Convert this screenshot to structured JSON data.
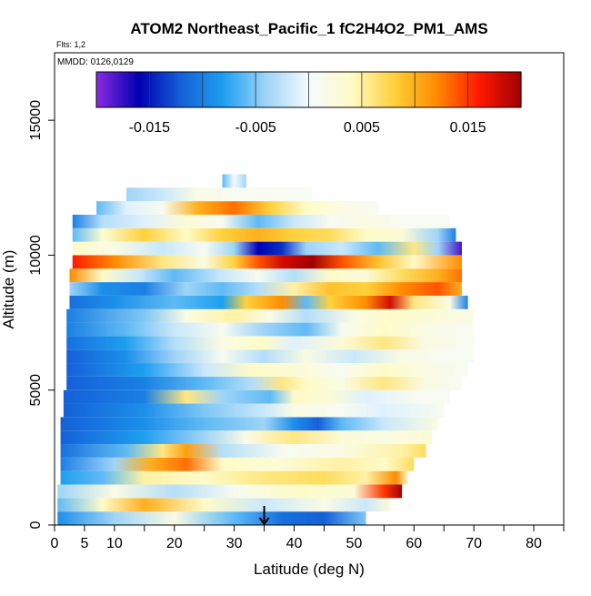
{
  "chart_data": {
    "type": "heatmap",
    "title": "ATOM2 Northeast_Pacific_1 fC2H4O2_PM1_AMS",
    "flights_label": "Flts: 1,2",
    "dates_label": "MMDD: 0126,0129",
    "xlabel": "Latitude (deg N)",
    "ylabel": "Altitude (m)",
    "xlim": [
      0,
      85
    ],
    "ylim": [
      0,
      17500
    ],
    "x_ticks": [
      0,
      5,
      10,
      20,
      30,
      40,
      50,
      60,
      70,
      80
    ],
    "x_minor_ticks": [
      15,
      25,
      35,
      45,
      55,
      65,
      75,
      85
    ],
    "y_ticks": [
      0,
      5000,
      10000,
      15000
    ],
    "colorbar": {
      "range": [
        -0.02,
        0.02
      ],
      "tick_values": [
        -0.015,
        -0.005,
        0.005,
        0.015
      ],
      "tick_labels": [
        "-0.015",
        "-0.005",
        "0.005",
        "0.015"
      ],
      "colors": [
        "#8a2be2",
        "#0000b0",
        "#1560d8",
        "#1e9ff0",
        "#9fd4f7",
        "#f4fbff",
        "#fffbc8",
        "#ffd23c",
        "#ff8c00",
        "#ff1a00",
        "#a00000"
      ]
    },
    "marker": {
      "type": "arrow",
      "x": 35,
      "label": ""
    },
    "layers": [
      {
        "y0": 0,
        "y1": 500,
        "x0": 0.5,
        "x1": 52,
        "stops": [
          [
            0,
            -0.009
          ],
          [
            10,
            -0.004
          ],
          [
            20,
            0.002
          ],
          [
            30,
            -0.006
          ],
          [
            38,
            -0.011
          ],
          [
            45,
            -0.012
          ],
          [
            52,
            -0.005
          ]
        ]
      },
      {
        "y0": 500,
        "y1": 1000,
        "x0": 0.5,
        "x1": 56,
        "stops": [
          [
            0,
            -0.006
          ],
          [
            8,
            0.004
          ],
          [
            15,
            0.01
          ],
          [
            25,
            0.004
          ],
          [
            35,
            -0.002
          ],
          [
            45,
            0.002
          ],
          [
            52,
            -0.002
          ],
          [
            56,
            0.003
          ]
        ]
      },
      {
        "y0": 1000,
        "y1": 1500,
        "x0": 0.5,
        "x1": 58,
        "stops": [
          [
            0,
            -0.004
          ],
          [
            10,
            0.002
          ],
          [
            20,
            -0.003
          ],
          [
            30,
            0.001
          ],
          [
            40,
            0.004
          ],
          [
            50,
            0.003
          ],
          [
            55,
            0.015
          ],
          [
            58,
            0.02
          ]
        ]
      },
      {
        "y0": 1500,
        "y1": 2000,
        "x0": 1,
        "x1": 59,
        "stops": [
          [
            1,
            -0.008
          ],
          [
            8,
            -0.006
          ],
          [
            15,
            0.005
          ],
          [
            25,
            0.004
          ],
          [
            35,
            0.006
          ],
          [
            45,
            0.007
          ],
          [
            52,
            0.005
          ],
          [
            57,
            0.012
          ],
          [
            59,
            0.004
          ]
        ]
      },
      {
        "y0": 2000,
        "y1": 2500,
        "x0": 1,
        "x1": 60,
        "stops": [
          [
            1,
            -0.01
          ],
          [
            10,
            -0.004
          ],
          [
            16,
            0.01
          ],
          [
            22,
            0.013
          ],
          [
            28,
            0.004
          ],
          [
            38,
            0.003
          ],
          [
            48,
            0.005
          ],
          [
            55,
            0.004
          ],
          [
            60,
            0.007
          ]
        ]
      },
      {
        "y0": 2500,
        "y1": 3000,
        "x0": 1,
        "x1": 62,
        "stops": [
          [
            1,
            -0.011
          ],
          [
            12,
            -0.006
          ],
          [
            18,
            0.006
          ],
          [
            22,
            0.011
          ],
          [
            28,
            -0.003
          ],
          [
            38,
            0.001
          ],
          [
            48,
            0.002
          ],
          [
            58,
            0.005
          ],
          [
            62,
            0.007
          ]
        ]
      },
      {
        "y0": 3000,
        "y1": 3500,
        "x0": 1,
        "x1": 63,
        "stops": [
          [
            1,
            -0.012
          ],
          [
            15,
            -0.008
          ],
          [
            25,
            -0.004
          ],
          [
            32,
            0.002
          ],
          [
            40,
            0.006
          ],
          [
            48,
            0.003
          ],
          [
            55,
            0.002
          ],
          [
            63,
            0.003
          ]
        ]
      },
      {
        "y0": 3500,
        "y1": 4000,
        "x0": 1,
        "x1": 64,
        "stops": [
          [
            1,
            -0.012
          ],
          [
            15,
            -0.009
          ],
          [
            25,
            -0.006
          ],
          [
            35,
            -0.004
          ],
          [
            40,
            -0.009
          ],
          [
            44,
            -0.012
          ],
          [
            48,
            -0.006
          ],
          [
            55,
            -0.002
          ],
          [
            64,
            0.002
          ]
        ]
      },
      {
        "y0": 4000,
        "y1": 4500,
        "x0": 1.5,
        "x1": 65,
        "stops": [
          [
            1.5,
            -0.012
          ],
          [
            15,
            -0.009
          ],
          [
            25,
            -0.005
          ],
          [
            35,
            -0.002
          ],
          [
            40,
            0.002
          ],
          [
            48,
            0.001
          ],
          [
            55,
            -0.001
          ],
          [
            65,
            0.001
          ]
        ]
      },
      {
        "y0": 4500,
        "y1": 5000,
        "x0": 1.5,
        "x1": 66,
        "stops": [
          [
            1.5,
            -0.012
          ],
          [
            15,
            -0.01
          ],
          [
            22,
            0.006
          ],
          [
            28,
            -0.004
          ],
          [
            36,
            -0.006
          ],
          [
            40,
            0.004
          ],
          [
            46,
            0.003
          ],
          [
            52,
            -0.001
          ],
          [
            60,
            0.001
          ],
          [
            66,
            0.001
          ]
        ]
      },
      {
        "y0": 5000,
        "y1": 5500,
        "x0": 2,
        "x1": 68,
        "stops": [
          [
            2,
            -0.012
          ],
          [
            15,
            -0.01
          ],
          [
            25,
            -0.006
          ],
          [
            33,
            -0.003
          ],
          [
            38,
            0.006
          ],
          [
            42,
            0.004
          ],
          [
            48,
            0.002
          ],
          [
            55,
            0.006
          ],
          [
            62,
            0.002
          ],
          [
            68,
            0.001
          ]
        ]
      },
      {
        "y0": 5500,
        "y1": 6000,
        "x0": 2,
        "x1": 69,
        "stops": [
          [
            2,
            -0.012
          ],
          [
            15,
            -0.008
          ],
          [
            25,
            -0.002
          ],
          [
            33,
            0.004
          ],
          [
            40,
            0.003
          ],
          [
            48,
            0.001
          ],
          [
            55,
            0.004
          ],
          [
            62,
            0.002
          ],
          [
            69,
            0.001
          ]
        ]
      },
      {
        "y0": 6000,
        "y1": 6500,
        "x0": 2,
        "x1": 70,
        "stops": [
          [
            2,
            -0.012
          ],
          [
            12,
            -0.009
          ],
          [
            20,
            -0.004
          ],
          [
            28,
            0.001
          ],
          [
            35,
            -0.003
          ],
          [
            42,
            0.002
          ],
          [
            50,
            -0.002
          ],
          [
            58,
            0.002
          ],
          [
            65,
            0.001
          ],
          [
            70,
            0.001
          ]
        ]
      },
      {
        "y0": 6500,
        "y1": 7000,
        "x0": 2,
        "x1": 70,
        "stops": [
          [
            2,
            -0.011
          ],
          [
            12,
            -0.008
          ],
          [
            20,
            -0.003
          ],
          [
            28,
            0.002
          ],
          [
            35,
            0.004
          ],
          [
            40,
            -0.001
          ],
          [
            48,
            0.003
          ],
          [
            55,
            0.006
          ],
          [
            62,
            0.002
          ],
          [
            70,
            0.001
          ]
        ]
      },
      {
        "y0": 7000,
        "y1": 7500,
        "x0": 2,
        "x1": 70,
        "stops": [
          [
            2,
            -0.01
          ],
          [
            12,
            -0.006
          ],
          [
            20,
            -0.002
          ],
          [
            28,
            0.001
          ],
          [
            35,
            -0.004
          ],
          [
            42,
            -0.006
          ],
          [
            48,
            0.001
          ],
          [
            55,
            0.004
          ],
          [
            62,
            0.002
          ],
          [
            70,
            0.001
          ]
        ]
      },
      {
        "y0": 7500,
        "y1": 8000,
        "x0": 2,
        "x1": 70,
        "stops": [
          [
            2,
            -0.01
          ],
          [
            15,
            -0.005
          ],
          [
            22,
            0.002
          ],
          [
            30,
            0.005
          ],
          [
            36,
            0.002
          ],
          [
            42,
            -0.003
          ],
          [
            50,
            0.002
          ],
          [
            56,
            0.004
          ],
          [
            62,
            0.003
          ],
          [
            70,
            0.002
          ]
        ]
      },
      {
        "y0": 8000,
        "y1": 8500,
        "x0": 2.5,
        "x1": 69,
        "stops": [
          [
            2.5,
            -0.011
          ],
          [
            10,
            -0.009
          ],
          [
            20,
            -0.006
          ],
          [
            28,
            -0.008
          ],
          [
            32,
            0.008
          ],
          [
            38,
            0.012
          ],
          [
            42,
            -0.006
          ],
          [
            46,
            0.008
          ],
          [
            52,
            0.012
          ],
          [
            56,
            0.018
          ],
          [
            60,
            0.006
          ],
          [
            66,
            0.002
          ],
          [
            69,
            -0.01
          ]
        ]
      },
      {
        "y0": 8500,
        "y1": 9000,
        "x0": 2.5,
        "x1": 68,
        "stops": [
          [
            2.5,
            -0.004
          ],
          [
            8,
            -0.009
          ],
          [
            15,
            -0.01
          ],
          [
            22,
            -0.004
          ],
          [
            28,
            -0.006
          ],
          [
            34,
            -0.003
          ],
          [
            40,
            0.005
          ],
          [
            46,
            0.009
          ],
          [
            52,
            0.008
          ],
          [
            58,
            0.012
          ],
          [
            64,
            0.014
          ],
          [
            68,
            0.01
          ]
        ]
      },
      {
        "y0": 9000,
        "y1": 9500,
        "x0": 2.5,
        "x1": 68,
        "stops": [
          [
            2.5,
            0.012
          ],
          [
            8,
            0.004
          ],
          [
            14,
            -0.002
          ],
          [
            20,
            -0.006
          ],
          [
            28,
            -0.002
          ],
          [
            34,
            0.001
          ],
          [
            40,
            -0.003
          ],
          [
            46,
            0.004
          ],
          [
            52,
            0.003
          ],
          [
            58,
            0.007
          ],
          [
            64,
            0.01
          ],
          [
            68,
            0.013
          ]
        ]
      },
      {
        "y0": 9500,
        "y1": 10000,
        "x0": 3,
        "x1": 68,
        "stops": [
          [
            3,
            0.016
          ],
          [
            10,
            0.012
          ],
          [
            18,
            0.006
          ],
          [
            25,
            0.002
          ],
          [
            30,
            0.008
          ],
          [
            34,
            0.014
          ],
          [
            38,
            0.018
          ],
          [
            43,
            0.02
          ],
          [
            48,
            0.014
          ],
          [
            54,
            0.009
          ],
          [
            60,
            0.004
          ],
          [
            68,
            0.012
          ]
        ]
      },
      {
        "y0": 10000,
        "y1": 10500,
        "x0": 3,
        "x1": 68,
        "stops": [
          [
            3,
            0.004
          ],
          [
            10,
            0.002
          ],
          [
            18,
            -0.002
          ],
          [
            25,
            0.001
          ],
          [
            30,
            -0.004
          ],
          [
            34,
            -0.016
          ],
          [
            38,
            -0.014
          ],
          [
            42,
            -0.004
          ],
          [
            48,
            -0.002
          ],
          [
            54,
            -0.006
          ],
          [
            60,
            0.006
          ],
          [
            64,
            -0.004
          ],
          [
            68,
            -0.018
          ]
        ]
      },
      {
        "y0": 10500,
        "y1": 11000,
        "x0": 3,
        "x1": 67,
        "stops": [
          [
            3,
            -0.006
          ],
          [
            8,
            0.003
          ],
          [
            15,
            0.008
          ],
          [
            22,
            0.004
          ],
          [
            28,
            0.008
          ],
          [
            34,
            0.01
          ],
          [
            40,
            0.008
          ],
          [
            46,
            0.007
          ],
          [
            52,
            0.004
          ],
          [
            58,
            0.003
          ],
          [
            64,
            -0.004
          ],
          [
            67,
            -0.01
          ]
        ]
      },
      {
        "y0": 11000,
        "y1": 11500,
        "x0": 3,
        "x1": 66,
        "stops": [
          [
            3,
            -0.01
          ],
          [
            8,
            -0.003
          ],
          [
            15,
            -0.001
          ],
          [
            22,
            0.003
          ],
          [
            28,
            0.001
          ],
          [
            34,
            -0.006
          ],
          [
            40,
            -0.002
          ],
          [
            46,
            0.001
          ],
          [
            52,
            0.002
          ],
          [
            58,
            0.001
          ],
          [
            66,
            0.001
          ]
        ]
      },
      {
        "y0": 11500,
        "y1": 12000,
        "x0": 7,
        "x1": 54,
        "stops": [
          [
            7,
            -0.006
          ],
          [
            12,
            -0.001
          ],
          [
            18,
            0.001
          ],
          [
            24,
            0.01
          ],
          [
            30,
            0.013
          ],
          [
            36,
            0.008
          ],
          [
            42,
            0.004
          ],
          [
            48,
            0.002
          ],
          [
            54,
            0.001
          ]
        ]
      },
      {
        "y0": 12000,
        "y1": 12500,
        "x0": 12,
        "x1": 43,
        "stops": [
          [
            12,
            -0.004
          ],
          [
            18,
            -0.002
          ],
          [
            24,
            0.002
          ],
          [
            30,
            0.001
          ],
          [
            36,
            0.001
          ],
          [
            43,
            0.001
          ]
        ]
      },
      {
        "y0": 12500,
        "y1": 13000,
        "x0": 28,
        "x1": 32,
        "stops": [
          [
            28,
            -0.006
          ],
          [
            30,
            0.0
          ],
          [
            32,
            -0.004
          ]
        ]
      }
    ]
  }
}
